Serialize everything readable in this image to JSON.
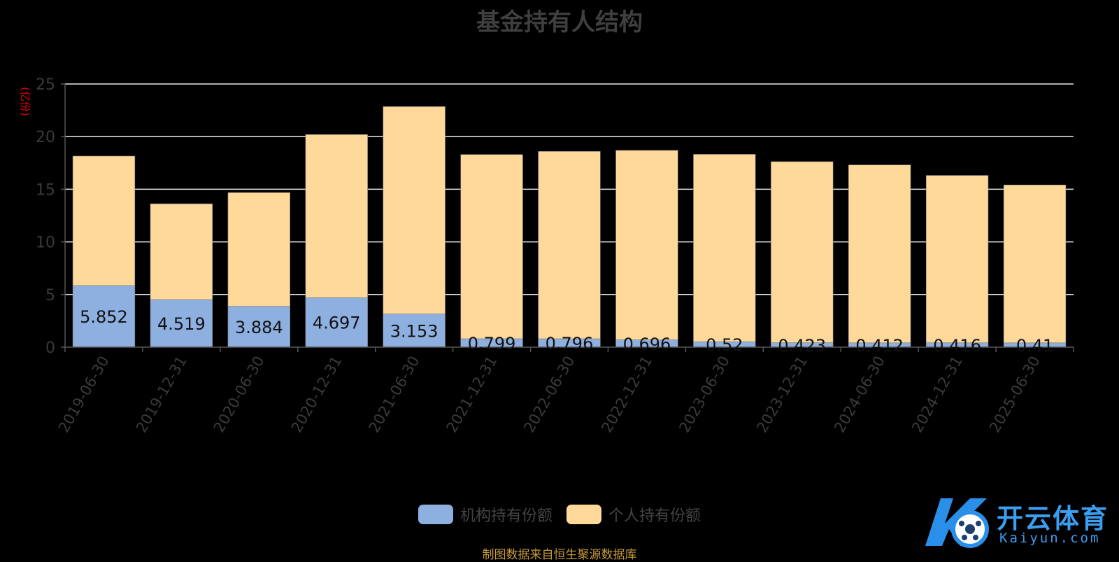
{
  "chart_data": {
    "type": "bar",
    "stacked": true,
    "title": "基金持有人结构",
    "ylabel": "(亿份)",
    "ylim": [
      0,
      25
    ],
    "yticks": [
      0,
      5,
      10,
      15,
      20,
      25
    ],
    "categories": [
      "2019-06-30",
      "2019-12-31",
      "2020-06-30",
      "2020-12-31",
      "2021-06-30",
      "2021-12-31",
      "2022-06-30",
      "2022-12-31",
      "2023-06-30",
      "2023-12-31",
      "2024-06-30",
      "2024-12-31",
      "2025-06-30"
    ],
    "series": [
      {
        "name": "机构持有份额",
        "color": "#8eb0e0",
        "values": [
          5.852,
          4.519,
          3.884,
          4.697,
          3.153,
          0.799,
          0.796,
          0.696,
          0.52,
          0.423,
          0.412,
          0.416,
          0.41
        ],
        "labels": [
          "5.852",
          "4.519",
          "3.884",
          "4.697",
          "3.153",
          "0.799",
          "0.796",
          "0.696",
          "0.52",
          "0.423",
          "0.412",
          "0.416",
          "0.41"
        ]
      },
      {
        "name": "个人持有份额",
        "color": "#ffd99a",
        "values": [
          12.3,
          9.1,
          10.8,
          15.5,
          19.7,
          17.5,
          17.8,
          18.0,
          17.8,
          17.2,
          16.9,
          15.9,
          15.0
        ]
      }
    ],
    "grid": true,
    "legend_position": "bottom-center"
  },
  "source_note": "制图数据来自恒生聚源数据库",
  "brand": {
    "name": "开云体育",
    "sub": "Kaiyun.com"
  }
}
